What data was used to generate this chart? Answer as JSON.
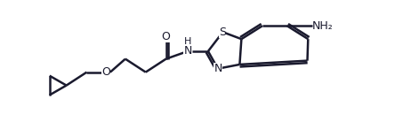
{
  "bg_color": "#ffffff",
  "line_color": "#1a1a2e",
  "line_width": 1.8,
  "font_size": 9,
  "fig_width": 4.71,
  "fig_height": 1.38,
  "dpi": 100,
  "xlim": [
    0,
    10.5
  ],
  "ylim": [
    -0.3,
    3.2
  ]
}
